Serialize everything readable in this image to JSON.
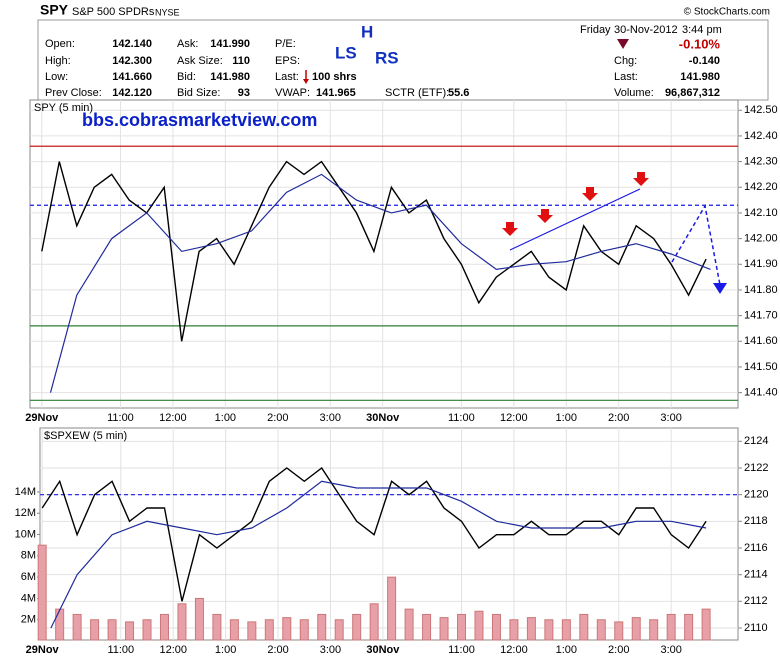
{
  "header": {
    "symbol": "SPY",
    "name": "S&P 500 SPDRs",
    "exchange": "NYSE",
    "credit": "© StockCharts.com",
    "quote_left": [
      {
        "label": "Open:",
        "value": "142.140"
      },
      {
        "label": "High:",
        "value": "142.300"
      },
      {
        "label": "Low:",
        "value": "141.660"
      },
      {
        "label": "Prev Close:",
        "value": "142.120"
      }
    ],
    "quote_mid": [
      {
        "label": "Ask:",
        "value": "141.990"
      },
      {
        "label": "Ask Size:",
        "value": "110"
      },
      {
        "label": "Bid:",
        "value": "141.980"
      },
      {
        "label": "Bid Size:",
        "value": "93"
      }
    ],
    "quote_third": [
      {
        "label": "P/E:",
        "value": null
      },
      {
        "label": "EPS:",
        "value": null
      },
      {
        "label": "Last:",
        "value": "100 shrs"
      },
      {
        "label": "VWAP:",
        "value": "141.965"
      }
    ],
    "sctr": {
      "label": "SCTR (ETF):",
      "value": "55.6"
    },
    "day": "Friday",
    "date": "30-Nov-2012",
    "time": "3:44 pm",
    "change_pct": "-0.10%",
    "quote_right": [
      {
        "label": "Chg:",
        "value": "-0.140"
      },
      {
        "label": "Last:",
        "value": "141.980"
      },
      {
        "label": "Volume:",
        "value": "96,867,312"
      }
    ],
    "annotations": {
      "ls": "LS",
      "h": "H",
      "rs": "RS",
      "site": "bbs.cobrasmarketview.com"
    }
  },
  "chart_data": [
    {
      "type": "line",
      "title": "SPY (5 min)",
      "xlim": [
        -2.7,
        159.3
      ],
      "ylim": [
        141.34,
        142.54
      ],
      "grid": true,
      "xticks": [
        {
          "value": 0,
          "label": "29Nov"
        },
        {
          "value": 18,
          "label": "11:00"
        },
        {
          "value": 30,
          "label": "12:00"
        },
        {
          "value": 42,
          "label": "1:00"
        },
        {
          "value": 54,
          "label": "2:00"
        },
        {
          "value": 66,
          "label": "3:00"
        },
        {
          "value": 78,
          "label": "30Nov"
        },
        {
          "value": 96,
          "label": "11:00"
        },
        {
          "value": 108,
          "label": "12:00"
        },
        {
          "value": 120,
          "label": "1:00"
        },
        {
          "value": 132,
          "label": "2:00"
        },
        {
          "value": 144,
          "label": "3:00"
        }
      ],
      "yticks": [
        {
          "value": 141.4,
          "label": "141.40"
        },
        {
          "value": 141.5,
          "label": "141.50"
        },
        {
          "value": 141.6,
          "label": "141.60"
        },
        {
          "value": 141.7,
          "label": "141.70"
        },
        {
          "value": 141.8,
          "label": "141.80"
        },
        {
          "value": 141.9,
          "label": "141.90"
        },
        {
          "value": 142.0,
          "label": "142.00"
        },
        {
          "value": 142.1,
          "label": "142.10"
        },
        {
          "value": 142.2,
          "label": "142.20"
        },
        {
          "value": 142.3,
          "label": "142.30"
        },
        {
          "value": 142.4,
          "label": "142.40"
        },
        {
          "value": 142.5,
          "label": "142.50"
        }
      ],
      "hlines": [
        {
          "value": 142.36,
          "color": "#c00000",
          "style": "solid"
        },
        {
          "value": 141.66,
          "color": "#2e7d32",
          "style": "solid"
        },
        {
          "value": 141.37,
          "color": "#2e7d32",
          "style": "solid"
        },
        {
          "value": 142.13,
          "color": "#1a1ae6",
          "style": "dashed"
        }
      ],
      "series": [
        {
          "color": "#000000",
          "width": 1.4,
          "x": [
            0,
            4,
            8,
            12,
            16,
            20,
            24,
            28,
            32,
            36,
            40,
            44,
            48,
            52,
            56,
            60,
            64,
            68,
            72,
            76,
            80,
            84,
            88,
            92,
            96,
            100,
            104,
            108,
            112,
            116,
            120,
            124,
            128,
            132,
            136,
            140,
            144,
            148,
            152
          ],
          "values": [
            141.95,
            142.3,
            142.05,
            142.2,
            142.25,
            142.15,
            142.1,
            142.2,
            141.6,
            141.95,
            142.0,
            141.9,
            142.05,
            142.2,
            142.3,
            142.25,
            142.3,
            142.2,
            142.1,
            141.95,
            142.2,
            142.1,
            142.15,
            142.0,
            141.9,
            141.75,
            141.85,
            141.9,
            141.95,
            141.85,
            141.8,
            142.05,
            141.95,
            141.9,
            142.05,
            142.0,
            141.9,
            141.78,
            141.92
          ]
        },
        {
          "color": "#1f2a9c",
          "width": 1.2,
          "x": [
            2,
            8,
            16,
            24,
            32,
            40,
            48,
            56,
            64,
            72,
            80,
            88,
            96,
            104,
            112,
            120,
            128,
            136,
            144,
            153
          ],
          "values": [
            141.4,
            141.78,
            142.0,
            142.1,
            141.95,
            141.98,
            142.03,
            142.18,
            142.25,
            142.15,
            142.1,
            142.13,
            141.98,
            141.88,
            141.9,
            141.91,
            141.95,
            141.98,
            141.94,
            141.88
          ]
        }
      ]
    },
    {
      "type": "line",
      "title": "$SPXEW (5 min)",
      "xlim": [
        -0.5,
        159.3
      ],
      "ylim": [
        2109.1,
        2125.0
      ],
      "y2lim": [
        0.1,
        20
      ],
      "grid": true,
      "xticks": [
        {
          "value": 0,
          "label": "29Nov"
        },
        {
          "value": 18,
          "label": "11:00"
        },
        {
          "value": 30,
          "label": "12:00"
        },
        {
          "value": 42,
          "label": "1:00"
        },
        {
          "value": 54,
          "label": "2:00"
        },
        {
          "value": 66,
          "label": "3:00"
        },
        {
          "value": 78,
          "label": "30Nov"
        },
        {
          "value": 96,
          "label": "11:00"
        },
        {
          "value": 108,
          "label": "12:00"
        },
        {
          "value": 120,
          "label": "1:00"
        },
        {
          "value": 132,
          "label": "2:00"
        },
        {
          "value": 144,
          "label": "3:00"
        }
      ],
      "yticks": [
        2110,
        2112,
        2114,
        2116,
        2118,
        2120,
        2122,
        2124
      ],
      "y2ticks": [
        {
          "value": 2,
          "label": "2M"
        },
        {
          "value": 4,
          "label": "4M"
        },
        {
          "value": 6,
          "label": "6M"
        },
        {
          "value": 8,
          "label": "8M"
        },
        {
          "value": 10,
          "label": "10M"
        },
        {
          "value": 12,
          "label": "12M"
        },
        {
          "value": 14,
          "label": "14M"
        }
      ],
      "hlines": [
        {
          "value": 2120,
          "color": "#1a1ae6",
          "style": "dashed"
        }
      ],
      "series": [
        {
          "kind": "bars",
          "axis": "y2",
          "color": "#e8a0a8",
          "x": [
            0,
            4,
            8,
            12,
            16,
            20,
            24,
            28,
            32,
            36,
            40,
            44,
            48,
            52,
            56,
            60,
            64,
            68,
            72,
            76,
            80,
            84,
            88,
            92,
            96,
            100,
            104,
            108,
            112,
            116,
            120,
            124,
            128,
            132,
            136,
            140,
            144,
            148,
            152
          ],
          "values": [
            9,
            3,
            2.5,
            2,
            2,
            1.8,
            2,
            2.5,
            3.5,
            4,
            2.5,
            2,
            1.8,
            2,
            2.2,
            2,
            2.5,
            2,
            2.5,
            3.5,
            6,
            3,
            2.5,
            2.2,
            2.5,
            2.8,
            2.5,
            2,
            2.2,
            2,
            2,
            2.5,
            2,
            1.8,
            2.2,
            2,
            2.5,
            2.5,
            3
          ]
        },
        {
          "color": "#000000",
          "width": 1.4,
          "x": [
            0,
            4,
            8,
            12,
            16,
            20,
            24,
            28,
            32,
            36,
            40,
            44,
            48,
            52,
            56,
            60,
            64,
            68,
            72,
            76,
            80,
            84,
            88,
            92,
            96,
            100,
            104,
            108,
            112,
            116,
            120,
            124,
            128,
            132,
            136,
            140,
            144,
            148,
            152
          ],
          "values": [
            2119,
            2121,
            2117,
            2120,
            2121,
            2118,
            2119,
            2119,
            2112,
            2117,
            2116,
            2117,
            2118,
            2121,
            2122,
            2121,
            2122,
            2120,
            2118,
            2117,
            2121,
            2120,
            2121,
            2119,
            2118,
            2116,
            2117,
            2117,
            2118,
            2117,
            2117,
            2118,
            2118,
            2117,
            2119,
            2119,
            2117,
            2116,
            2118
          ]
        },
        {
          "color": "#1f2a9c",
          "width": 1.2,
          "x": [
            2,
            8,
            16,
            24,
            32,
            40,
            48,
            56,
            64,
            72,
            80,
            88,
            96,
            104,
            112,
            120,
            128,
            136,
            144,
            152
          ],
          "values": [
            2110,
            2114,
            2117,
            2118,
            2117.5,
            2117,
            2117.5,
            2119,
            2121,
            2120.5,
            2120.5,
            2120.5,
            2119.5,
            2118,
            2117.5,
            2117.5,
            2117.5,
            2118,
            2118,
            2117.5
          ]
        }
      ]
    }
  ]
}
